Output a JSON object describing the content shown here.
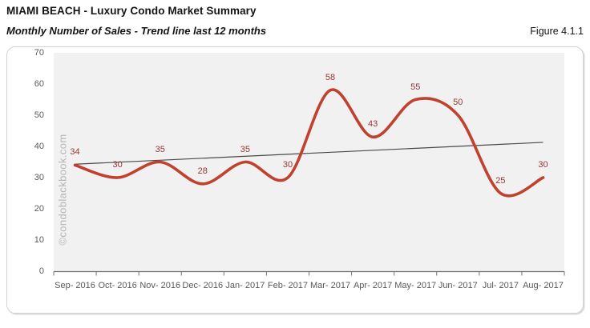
{
  "header": {
    "title": "MIAMI BEACH - Luxury Condo Market Summary",
    "subtitle": "Monthly Number of Sales - Trend line last 12 months",
    "figure_label": "Figure 4.1.1"
  },
  "watermark": "©condoblackbook.com",
  "chart_data": {
    "type": "line",
    "title": "Monthly Number of Sales - Trend line last 12 months",
    "categories": [
      "Sep- 2016",
      "Oct- 2016",
      "Nov- 2016",
      "Dec- 2016",
      "Jan- 2017",
      "Feb- 2017",
      "Mar- 2017",
      "Apr- 2017",
      "May- 2017",
      "Jun- 2017",
      "Jul- 2017",
      "Aug- 2017"
    ],
    "series": [
      {
        "name": "Monthly Number of Sales",
        "type": "smooth-line",
        "values": [
          34,
          30,
          35,
          28,
          35,
          30,
          58,
          43,
          55,
          50,
          25,
          30
        ],
        "color": "#c0422e",
        "line_width": 3.6,
        "data_labels": true,
        "label_color": "#953735"
      },
      {
        "name": "Trend line last 12 months",
        "type": "straight-line",
        "start_value": 34.3,
        "end_value": 41.3,
        "color": "#4a4a4a",
        "line_width": 1.2
      }
    ],
    "ylim": [
      0,
      70
    ],
    "yticks": [
      "0",
      "10",
      "20",
      "30",
      "40",
      "50",
      "60",
      "70"
    ],
    "grid": false,
    "legend": "none",
    "plot_bg": "#f1f1f1",
    "axis_color": "#737373",
    "tick_label_color": "#595959"
  }
}
